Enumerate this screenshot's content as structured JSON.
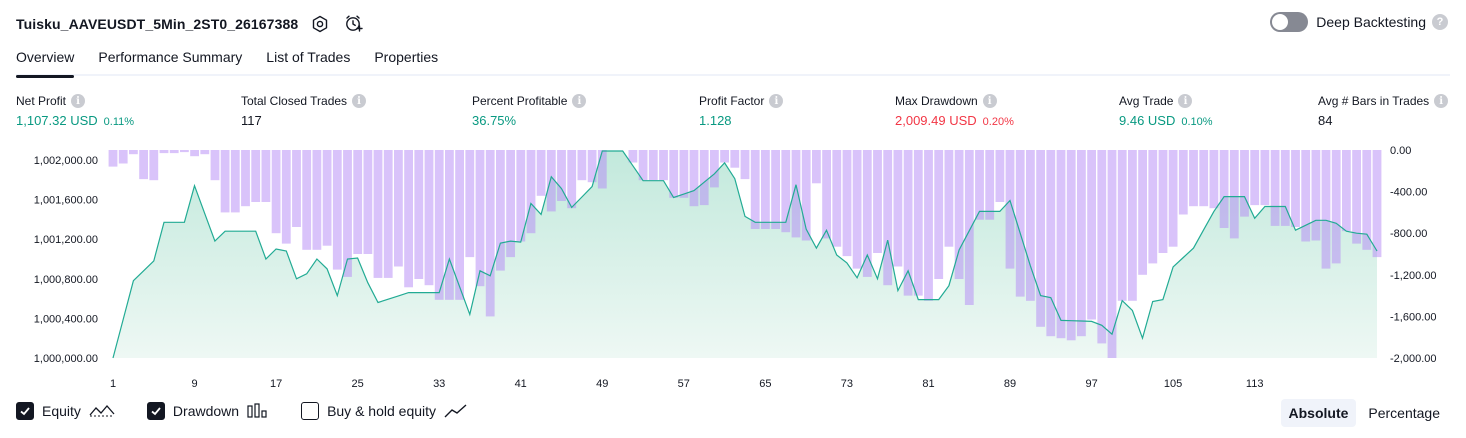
{
  "header": {
    "title": "Tuisku_AAVEUSDT_5Min_2ST0_26167388",
    "icons": [
      "settings-icon",
      "alert-add-icon"
    ]
  },
  "deep_backtesting": {
    "label": "Deep Backtesting",
    "enabled": false,
    "help": "?"
  },
  "tabs": [
    {
      "label": "Overview",
      "active": true
    },
    {
      "label": "Performance Summary",
      "active": false
    },
    {
      "label": "List of Trades",
      "active": false
    },
    {
      "label": "Properties",
      "active": false
    }
  ],
  "metrics": {
    "net_profit": {
      "label": "Net Profit",
      "value": "1,107.32 USD",
      "pct": "0.11%"
    },
    "total_closed_trades": {
      "label": "Total Closed Trades",
      "value": "117"
    },
    "percent_profitable": {
      "label": "Percent Profitable",
      "value": "36.75%"
    },
    "profit_factor": {
      "label": "Profit Factor",
      "value": "1.128"
    },
    "max_drawdown": {
      "label": "Max Drawdown",
      "value": "2,009.49 USD",
      "pct": "0.20%"
    },
    "avg_trade": {
      "label": "Avg Trade",
      "value": "9.46 USD",
      "pct": "0.10%"
    },
    "avg_bars": {
      "label": "Avg # Bars in Trades",
      "value": "84"
    },
    "info_glyph": "i"
  },
  "chart_data": {
    "type": "area",
    "x_ticks": [
      "1",
      "9",
      "17",
      "25",
      "33",
      "41",
      "49",
      "57",
      "65",
      "73",
      "81",
      "89",
      "97",
      "105",
      "113"
    ],
    "equity": {
      "ylim": [
        1000000,
        1002100
      ],
      "y_ticks": [
        "1,000,000.00",
        "1,000,400.00",
        "1,000,800.00",
        "1,001,200.00",
        "1,001,600.00",
        "1,002,000.00"
      ],
      "anchors": [
        [
          1,
          1000000
        ],
        [
          3,
          1000780
        ],
        [
          5,
          1000980
        ],
        [
          6,
          1001370
        ],
        [
          8,
          1001370
        ],
        [
          9,
          1001740
        ],
        [
          11,
          1001180
        ],
        [
          12,
          1001280
        ],
        [
          15,
          1001280
        ],
        [
          16,
          1001000
        ],
        [
          17,
          1001100
        ],
        [
          18,
          1001080
        ],
        [
          19,
          1000800
        ],
        [
          20,
          1000850
        ],
        [
          21,
          1001000
        ],
        [
          22,
          1000900
        ],
        [
          23,
          1000630
        ],
        [
          24,
          1001000
        ],
        [
          25,
          1001010
        ],
        [
          26,
          1000760
        ],
        [
          27,
          1000560
        ],
        [
          30,
          1000660
        ],
        [
          32,
          1000660
        ],
        [
          33,
          1000660
        ],
        [
          34,
          1001000
        ],
        [
          36,
          1000440
        ],
        [
          37,
          1000880
        ],
        [
          38,
          1000830
        ],
        [
          39,
          1001160
        ],
        [
          40,
          1001180
        ],
        [
          41,
          1001170
        ],
        [
          42,
          1001560
        ],
        [
          43,
          1001450
        ],
        [
          44,
          1001830
        ],
        [
          45,
          1001710
        ],
        [
          46,
          1001520
        ],
        [
          48,
          1001730
        ],
        [
          49,
          1002090
        ],
        [
          51,
          1002090
        ],
        [
          53,
          1001790
        ],
        [
          55,
          1001790
        ],
        [
          56,
          1001620
        ],
        [
          58,
          1001690
        ],
        [
          60,
          1001860
        ],
        [
          61,
          1001970
        ],
        [
          62,
          1001810
        ],
        [
          63,
          1001430
        ],
        [
          64,
          1001370
        ],
        [
          67,
          1001370
        ],
        [
          68,
          1001750
        ],
        [
          69,
          1001300
        ],
        [
          70,
          1001110
        ],
        [
          71,
          1001290
        ],
        [
          72,
          1001040
        ],
        [
          73,
          1000960
        ],
        [
          74,
          1000810
        ],
        [
          75,
          1001040
        ],
        [
          76,
          1000800
        ],
        [
          77,
          1001190
        ],
        [
          78,
          1000680
        ],
        [
          79,
          1000880
        ],
        [
          80,
          1000590
        ],
        [
          82,
          1000590
        ],
        [
          83,
          1000730
        ],
        [
          84,
          1001090
        ],
        [
          86,
          1001480
        ],
        [
          88,
          1001480
        ],
        [
          89,
          1001590
        ],
        [
          91,
          1000930
        ],
        [
          92,
          1000630
        ],
        [
          93,
          1000610
        ],
        [
          94,
          1000380
        ],
        [
          97,
          1000370
        ],
        [
          98,
          1000330
        ],
        [
          99,
          1000240
        ],
        [
          100,
          1000580
        ],
        [
          101,
          1000480
        ],
        [
          102,
          1000200
        ],
        [
          103,
          1000570
        ],
        [
          104,
          1000590
        ],
        [
          105,
          1000920
        ],
        [
          107,
          1001110
        ],
        [
          109,
          1001480
        ],
        [
          110,
          1001630
        ],
        [
          112,
          1001630
        ],
        [
          113,
          1001410
        ],
        [
          114,
          1001530
        ],
        [
          116,
          1001530
        ],
        [
          117,
          1001290
        ],
        [
          118,
          1001340
        ],
        [
          119,
          1001390
        ],
        [
          120,
          1001390
        ],
        [
          121,
          1001360
        ],
        [
          122,
          1001280
        ],
        [
          123,
          1001260
        ],
        [
          124,
          1001250
        ],
        [
          125,
          1001080
        ]
      ]
    },
    "drawdown": {
      "ylim": [
        -2000,
        0
      ],
      "y_ticks": [
        "-2,000.00",
        "-1,600.00",
        "-1,200.00",
        "-800.00",
        "-400.00",
        "0.00"
      ],
      "values": [
        -160,
        -130,
        -40,
        -280,
        -290,
        -30,
        -30,
        -20,
        -60,
        -40,
        -290,
        -600,
        -600,
        -540,
        -500,
        -500,
        -800,
        -900,
        -740,
        -960,
        -960,
        -920,
        -1150,
        -1220,
        -1000,
        -1000,
        -1230,
        -1230,
        -1120,
        -1320,
        -1240,
        -1300,
        -1440,
        -1440,
        -1440,
        -1030,
        -1310,
        -1600,
        -1160,
        -1030,
        -880,
        -800,
        -440,
        -590,
        -490,
        -560,
        -290,
        -310,
        -370,
        0,
        0,
        -120,
        -290,
        -290,
        -290,
        -460,
        -460,
        -540,
        -530,
        -360,
        -120,
        -170,
        -280,
        -760,
        -760,
        -760,
        -790,
        -840,
        -870,
        -320,
        -850,
        -930,
        -1020,
        -1140,
        -1220,
        -990,
        -1300,
        -1120,
        -1400,
        -1400,
        -1450,
        -1240,
        -930,
        -1240,
        -1490,
        -670,
        -670,
        -500,
        -1140,
        -1410,
        -1450,
        -1700,
        -1790,
        -1810,
        -1830,
        -1790,
        -1630,
        -1860,
        -2000,
        -1450,
        -1450,
        -1200,
        -1090,
        -990,
        -930,
        -620,
        -540,
        -540,
        -560,
        -750,
        -850,
        -640,
        -530,
        -530,
        -730,
        -730,
        -740,
        -880,
        -870,
        -1140,
        -1090,
        -780,
        -900,
        -960,
        -1030
      ]
    }
  },
  "legend": [
    {
      "label": "Equity",
      "checked": true,
      "icon": "equity-line-icon"
    },
    {
      "label": "Drawdown",
      "checked": true,
      "icon": "drawdown-bars-icon"
    },
    {
      "label": "Buy & hold equity",
      "checked": false,
      "icon": "buy-hold-line-icon"
    }
  ],
  "mode": {
    "options": [
      "Absolute",
      "Percentage"
    ],
    "selected": "Absolute"
  }
}
